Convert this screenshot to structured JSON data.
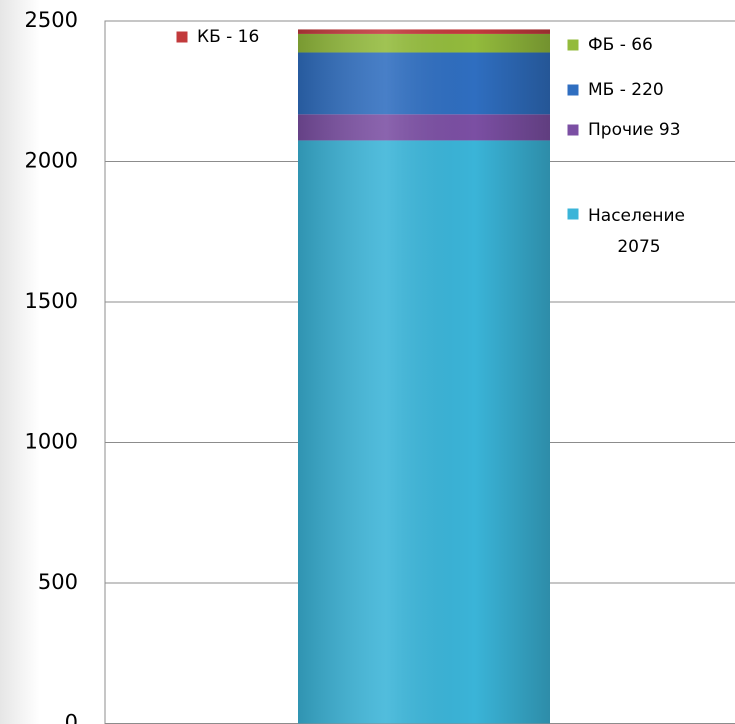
{
  "chart_data": {
    "type": "stacked_bar",
    "categories": [
      null
    ],
    "series": [
      {
        "name": "Население 2075",
        "color": "#3ab4d8",
        "values": [
          2075
        ]
      },
      {
        "name": "Прочие 93",
        "color": "#7b4fa3",
        "values": [
          93
        ]
      },
      {
        "name": "МБ - 220",
        "color": "#2f6ec0",
        "values": [
          220
        ]
      },
      {
        "name": "ФБ - 66",
        "color": "#93bb3c",
        "values": [
          66
        ]
      },
      {
        "name": "КБ - 16",
        "color": "#c23a3c",
        "values": [
          16
        ]
      }
    ],
    "ylim": [
      0,
      2500
    ],
    "yticks": [
      0,
      500,
      1000,
      1500,
      2000,
      2500
    ],
    "grid": true
  }
}
